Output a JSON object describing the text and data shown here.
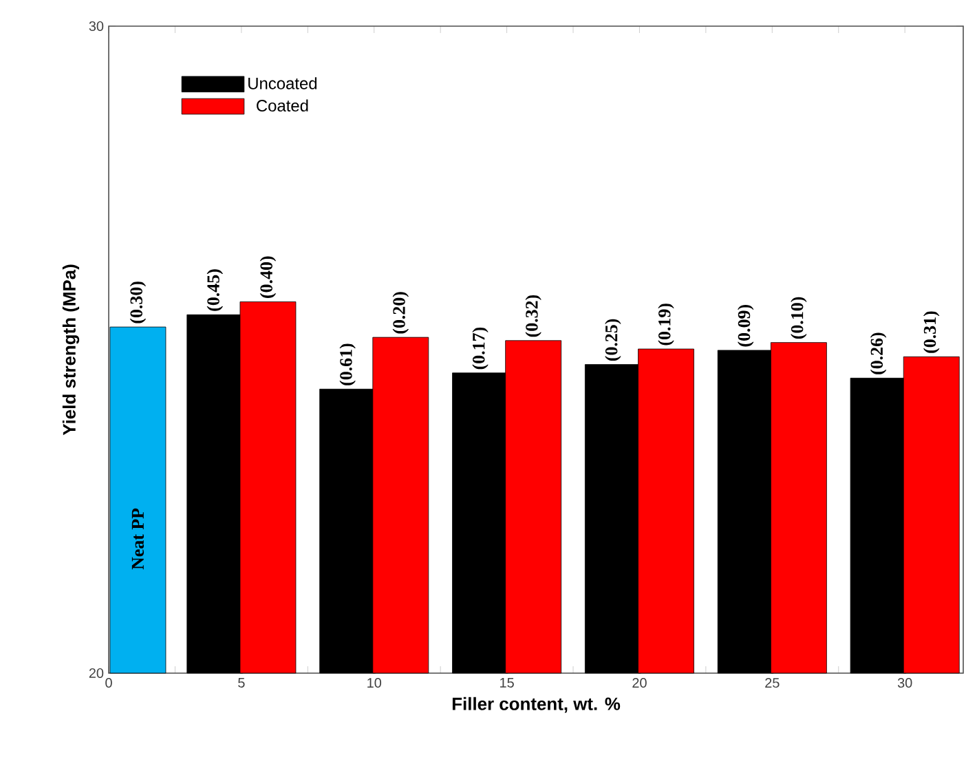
{
  "chart_data": {
    "type": "bar",
    "xlabel": "Filler content, wt. %",
    "ylabel": "Yield strength (MPa)",
    "xlim": [
      0,
      32.2
    ],
    "ylim": [
      20,
      30
    ],
    "xticks": [
      0,
      {
        "value": 2.5,
        "label": null
      },
      5,
      {
        "value": 7.5,
        "label": null
      },
      10,
      {
        "value": 12.5,
        "label": null
      },
      15,
      {
        "value": 17.5,
        "label": null
      },
      20,
      {
        "value": 22.5,
        "label": null
      },
      25,
      {
        "value": 27.5,
        "label": null
      },
      30
    ],
    "yticks": [
      20,
      30
    ],
    "legend": "top left",
    "series": [
      {
        "name": "Neat PP",
        "color": "#00b0f0",
        "x": [
          1.1
        ],
        "values": [
          25.35
        ]
      },
      {
        "name": "Uncoated",
        "color": "#000000",
        "x": [
          4,
          9,
          14,
          19,
          24,
          29
        ],
        "values": [
          25.54,
          24.39,
          24.64,
          24.77,
          24.99,
          24.56
        ]
      },
      {
        "name": "Coated",
        "color": "#ff0000",
        "x": [
          6,
          11,
          16,
          21,
          26,
          31
        ],
        "values": [
          25.74,
          25.19,
          25.14,
          25.01,
          25.11,
          24.89
        ]
      }
    ],
    "annotations": [
      {
        "text": "(0.30)",
        "x": 1.1,
        "y": 25.35
      },
      {
        "text": "(0.45)",
        "x": 4,
        "y": 25.54
      },
      {
        "text": "(0.40)",
        "x": 6,
        "y": 25.74
      },
      {
        "text": "(0.61)",
        "x": 9,
        "y": 24.39
      },
      {
        "text": "(0.20)",
        "x": 11,
        "y": 25.19
      },
      {
        "text": "(0.17)",
        "x": 14,
        "y": 24.64
      },
      {
        "text": "(0.32)",
        "x": 16,
        "y": 25.14
      },
      {
        "text": "(0.25)",
        "x": 19,
        "y": 24.77
      },
      {
        "text": "(0.19)",
        "x": 21,
        "y": 25.01
      },
      {
        "text": "(0.09)",
        "x": 24,
        "y": 24.99
      },
      {
        "text": "(0.10)",
        "x": 26,
        "y": 25.11
      },
      {
        "text": "(0.26)",
        "x": 29,
        "y": 24.56
      },
      {
        "text": "(0.31)",
        "x": 31,
        "y": 24.89
      }
    ]
  }
}
